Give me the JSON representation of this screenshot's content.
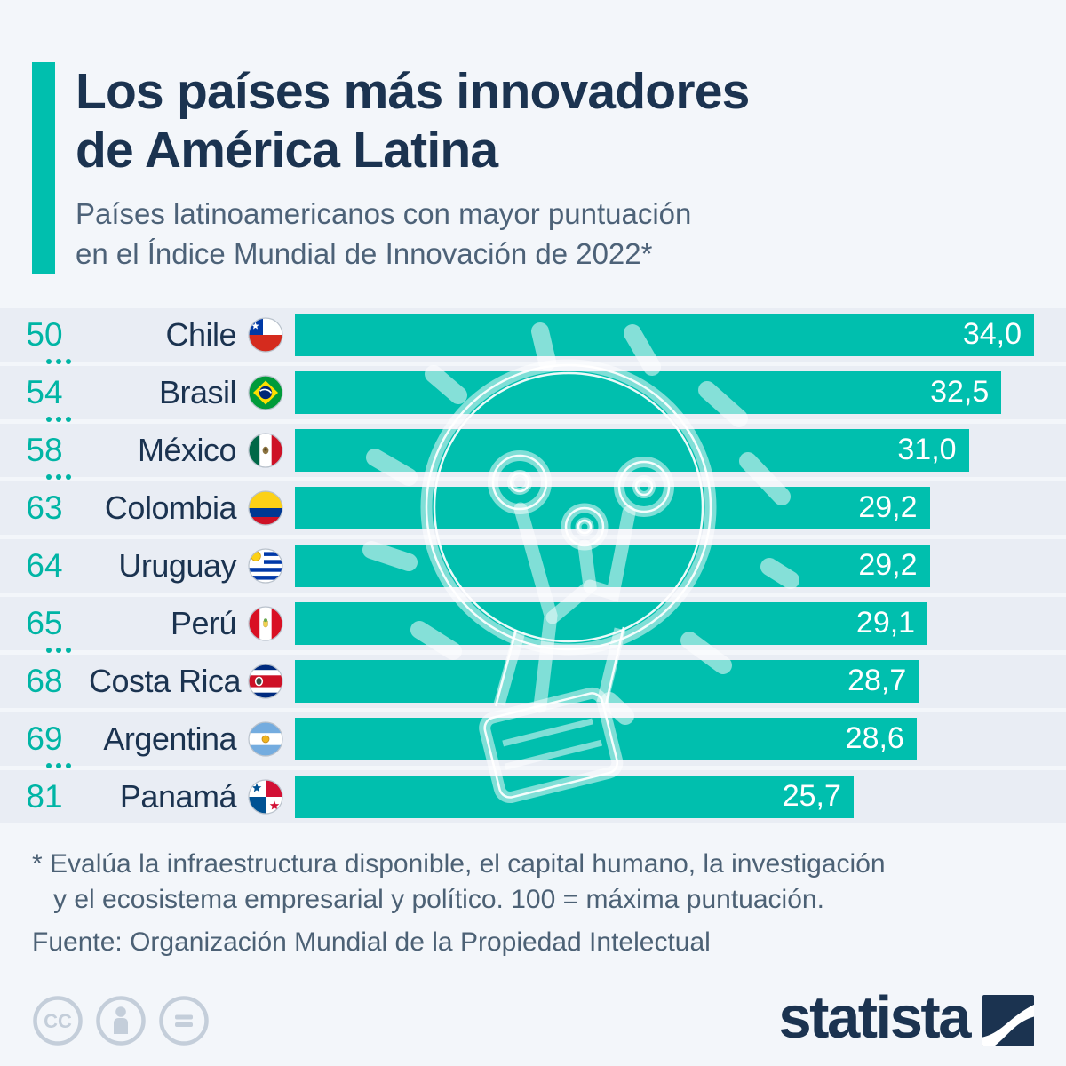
{
  "header": {
    "title_line1": "Los países más innovadores",
    "title_line2": "de América Latina",
    "subtitle_line1": "Países latinoamericanos con mayor puntuación",
    "subtitle_line2": "en el Índice Mundial de Innovación de 2022*"
  },
  "chart_data": {
    "type": "bar",
    "orientation": "horizontal",
    "title": "Los países más innovadores de América Latina",
    "subtitle": "Países latinoamericanos con mayor puntuación en el Índice Mundial de Innovación de 2022*",
    "value_axis": "Puntuación en el Índice Mundial de Innovación 2022 (100 = máxima puntuación)",
    "max_value": 34.0,
    "xlim": [
      0,
      34.0
    ],
    "grid": false,
    "legend": "none",
    "bar_color": "#00bfae",
    "rows": [
      {
        "rank": "50",
        "gap_after": true,
        "country": "Chile",
        "flag": "chile",
        "value": 34.0,
        "label": "34,0"
      },
      {
        "rank": "54",
        "gap_after": true,
        "country": "Brasil",
        "flag": "brasil",
        "value": 32.5,
        "label": "32,5"
      },
      {
        "rank": "58",
        "gap_after": true,
        "country": "México",
        "flag": "mexico",
        "value": 31.0,
        "label": "31,0"
      },
      {
        "rank": "63",
        "gap_after": false,
        "country": "Colombia",
        "flag": "colombia",
        "value": 29.2,
        "label": "29,2"
      },
      {
        "rank": "64",
        "gap_after": false,
        "country": "Uruguay",
        "flag": "uruguay",
        "value": 29.2,
        "label": "29,2"
      },
      {
        "rank": "65",
        "gap_after": true,
        "country": "Perú",
        "flag": "peru",
        "value": 29.1,
        "label": "29,1"
      },
      {
        "rank": "68",
        "gap_after": false,
        "country": "Costa Rica",
        "flag": "costarica",
        "value": 28.7,
        "label": "28,7"
      },
      {
        "rank": "69",
        "gap_after": true,
        "country": "Argentina",
        "flag": "argentina",
        "value": 28.6,
        "label": "28,6"
      },
      {
        "rank": "81",
        "gap_after": false,
        "country": "Panamá",
        "flag": "panama",
        "value": 25.7,
        "label": "25,7"
      }
    ]
  },
  "footnote": {
    "line1": "* Evalúa la infraestructura disponible, el capital humano, la investigación",
    "line2": "y el ecosistema empresarial y político. 100 = máxima puntuación.",
    "source": "Fuente: Organización Mundial de la Propiedad Intelectual"
  },
  "footer": {
    "brand": "statista",
    "license_icons": [
      "cc-icon",
      "attribution-person-icon",
      "no-derivatives-equals-icon"
    ]
  },
  "colors": {
    "accent_teal": "#00bfae",
    "rank_teal": "#00b5a5",
    "navy": "#1b3350",
    "subtitle_gray": "#4d6278",
    "row_band": "#e9edf4",
    "page_bg": "#f3f6fa",
    "license_gray": "#c4ceda",
    "watermark": "lightbulb-circuit-icon"
  }
}
